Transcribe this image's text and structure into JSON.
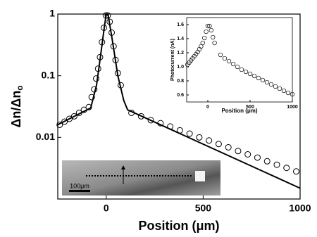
{
  "chart_data": [
    {
      "type": "line",
      "yscale": "log",
      "x_label": "Position (μm)",
      "y_label": "Δn/Δn",
      "y_label_subscript": "o",
      "xlim": [
        -250,
        1000
      ],
      "xticks": [
        0,
        500,
        1000
      ],
      "ylim": [
        0.001,
        1
      ],
      "yticks": [
        1,
        0.1,
        0.01
      ],
      "series": [
        {
          "style": "markers",
          "color": "#000000",
          "x": [
            -240,
            -215,
            -190,
            -165,
            -140,
            -115,
            -90,
            -75,
            -62,
            -52,
            -42,
            -32,
            -22,
            -12,
            -2,
            8,
            18,
            28,
            38,
            48,
            60,
            75,
            130,
            180,
            230,
            280,
            330,
            380,
            430,
            480,
            530,
            580,
            630,
            680,
            730,
            780,
            830,
            880,
            930,
            980
          ],
          "values": [
            0.016,
            0.018,
            0.02,
            0.022,
            0.025,
            0.028,
            0.031,
            0.045,
            0.06,
            0.09,
            0.13,
            0.2,
            0.35,
            0.6,
            0.95,
            0.95,
            0.75,
            0.5,
            0.3,
            0.18,
            0.11,
            0.07,
            0.025,
            0.022,
            0.019,
            0.017,
            0.015,
            0.013,
            0.0115,
            0.01,
            0.0089,
            0.0078,
            0.0069,
            0.006,
            0.0053,
            0.0047,
            0.0041,
            0.0036,
            0.0032,
            0.0028
          ]
        },
        {
          "style": "line",
          "color": "#000000",
          "x": [
            -250,
            -80,
            -50,
            -30,
            -10,
            0,
            10,
            30,
            60,
            90,
            110,
            1000
          ],
          "values": [
            0.016,
            0.03,
            0.07,
            0.2,
            0.6,
            1,
            0.95,
            0.4,
            0.1,
            0.04,
            0.028,
            0.0015
          ]
        }
      ]
    },
    {
      "type": "line",
      "x_label": "Position (μm)",
      "y_label": "Photocurrent (nA)",
      "xlim": [
        -250,
        1000
      ],
      "xticks": [
        0,
        500,
        1000
      ],
      "ylim": [
        0.5,
        1.7
      ],
      "yticks": [
        0.6,
        0.8,
        {
          "value": 1,
          "label": "1.0"
        },
        1.2,
        1.4,
        1.6
      ],
      "series": [
        {
          "style": "markers",
          "color": "#000000",
          "x": [
            -240,
            -220,
            -200,
            -180,
            -160,
            -140,
            -120,
            -100,
            -80,
            -60,
            -40,
            -20,
            0,
            20,
            40,
            60,
            80,
            150,
            200,
            250,
            300,
            350,
            400,
            450,
            500,
            550,
            600,
            650,
            700,
            750,
            800,
            850,
            900,
            950,
            1000
          ],
          "values": [
            1.03,
            1.06,
            1.09,
            1.12,
            1.15,
            1.18,
            1.21,
            1.25,
            1.29,
            1.34,
            1.41,
            1.5,
            1.58,
            1.58,
            1.52,
            1.42,
            1.34,
            1.17,
            1.12,
            1.08,
            1.04,
            1.0,
            0.96,
            0.93,
            0.9,
            0.87,
            0.84,
            0.81,
            0.78,
            0.75,
            0.72,
            0.69,
            0.66,
            0.63,
            0.61
          ]
        }
      ]
    }
  ],
  "image_inset": {
    "scale_label": "100μm"
  }
}
